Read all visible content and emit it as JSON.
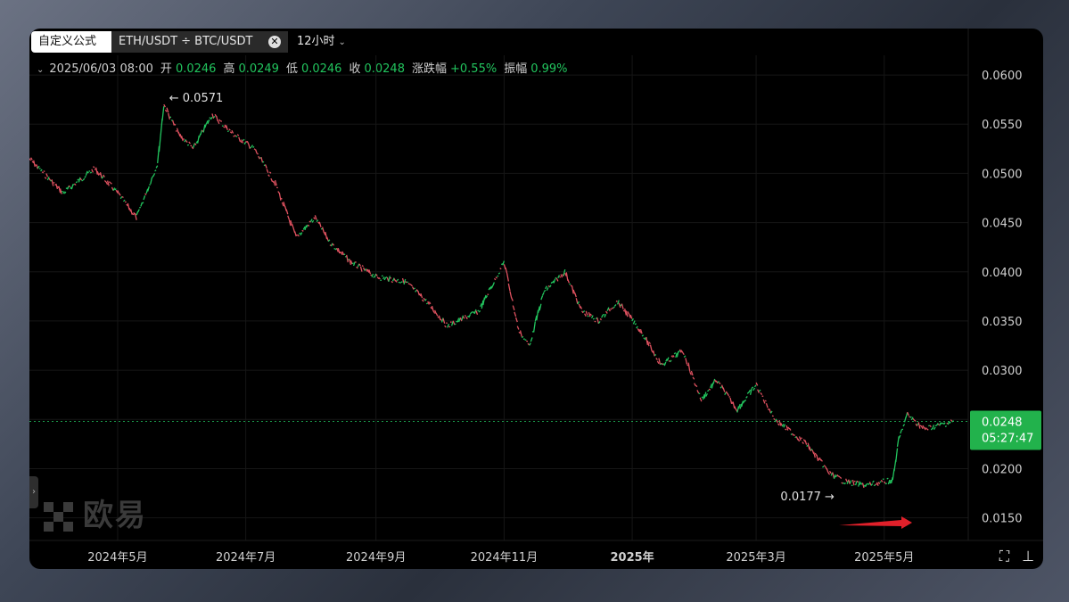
{
  "toolbar": {
    "formula_tab": "自定义公式",
    "pair_tab": "ETH/USDT ÷ BTC/USDT",
    "close_icon": "close-circle-icon",
    "interval": "12小时"
  },
  "ohlc": {
    "date": "2025/06/03 08:00",
    "open_label": "开",
    "open": "0.0246",
    "high_label": "高",
    "high": "0.0249",
    "low_label": "低",
    "low": "0.0246",
    "close_label": "收",
    "close": "0.0248",
    "change_label": "涨跌幅",
    "change": "+0.55%",
    "amplitude_label": "振幅",
    "amplitude": "0.99%"
  },
  "current_price": {
    "value": "0.0248",
    "countdown": "05:27:47"
  },
  "watermark": "欧易",
  "colors": {
    "up": "#22c55e",
    "down": "#e05260",
    "badge": "#22b24c",
    "arrow": "#e0202a"
  },
  "chart_data": {
    "type": "line",
    "series": [
      {
        "x": [
          "2024-03-20",
          "2024-04-05",
          "2024-04-20",
          "2024-05-01",
          "2024-05-10",
          "2024-05-20",
          "2024-05-23",
          "2024-05-30",
          "2024-06-06",
          "2024-06-15",
          "2024-06-25",
          "2024-07-05",
          "2024-07-15",
          "2024-07-25",
          "2024-08-03",
          "2024-08-10",
          "2024-08-20",
          "2024-09-01",
          "2024-09-15",
          "2024-09-25",
          "2024-10-05",
          "2024-10-20",
          "2024-11-01",
          "2024-11-08",
          "2024-11-13",
          "2024-11-20",
          "2024-11-30",
          "2024-12-08",
          "2024-12-16",
          "2024-12-25",
          "2025-01-05",
          "2025-01-15",
          "2025-01-25",
          "2025-02-03",
          "2025-02-10",
          "2025-02-20",
          "2025-03-01",
          "2025-03-10",
          "2025-03-25",
          "2025-04-05",
          "2025-04-12",
          "2025-04-22",
          "2025-05-05",
          "2025-05-08",
          "2025-05-12",
          "2025-05-20",
          "2025-06-03"
        ],
        "y": [
          0.0515,
          0.048,
          0.0505,
          0.048,
          0.0455,
          0.051,
          0.057,
          0.054,
          0.0525,
          0.056,
          0.054,
          0.0525,
          0.049,
          0.0435,
          0.0455,
          0.043,
          0.041,
          0.0395,
          0.039,
          0.037,
          0.0345,
          0.036,
          0.041,
          0.034,
          0.0325,
          0.038,
          0.04,
          0.036,
          0.035,
          0.037,
          0.034,
          0.0305,
          0.032,
          0.027,
          0.029,
          0.026,
          0.0285,
          0.025,
          0.0225,
          0.0195,
          0.0187,
          0.0183,
          0.0188,
          0.023,
          0.0255,
          0.024,
          0.0248
        ]
      }
    ],
    "x_ticks": [
      "2024年5月",
      "2024年7月",
      "2024年9月",
      "2024年11月",
      "2025年",
      "2025年3月",
      "2025年5月"
    ],
    "x_tick_dates": [
      "2024-05-01",
      "2024-07-01",
      "2024-09-01",
      "2024-11-01",
      "2025-01-01",
      "2025-03-01",
      "2025-05-01"
    ],
    "x_range": [
      "2024-03-20",
      "2025-06-10"
    ],
    "y_ticks": [
      "0.0600",
      "0.0550",
      "0.0500",
      "0.0450",
      "0.0400",
      "0.0350",
      "0.0300",
      "0.0250",
      "0.0200",
      "0.0150"
    ],
    "ylim": [
      0.0127,
      0.062
    ],
    "annotations": {
      "high": {
        "label": "0.0571",
        "value": 0.0571,
        "date": "2024-05-23"
      },
      "low": {
        "label": "0.0177",
        "value": 0.0177,
        "date": "2025-04-09"
      }
    },
    "current": 0.0248,
    "grid": true
  }
}
